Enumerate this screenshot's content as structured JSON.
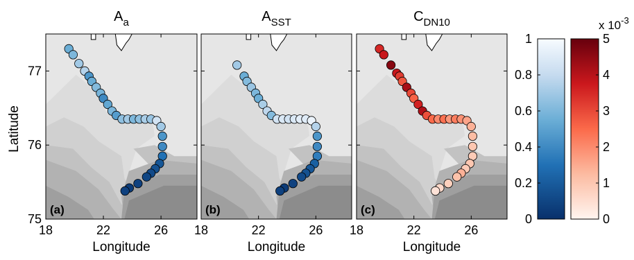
{
  "chart_data": {
    "type": "scatter",
    "xlabel": "Longitude",
    "ylabel": "Latitude",
    "xlim": [
      18,
      28.5
    ],
    "ylim": [
      75,
      77.5
    ],
    "xticks": [
      "18",
      "22",
      "26"
    ],
    "yticks": [
      "75",
      "76",
      "77"
    ],
    "panels": [
      {
        "id": "a",
        "title_main": "A",
        "title_sub": "a",
        "label": "(a)",
        "colormap": "blue",
        "points": [
          {
            "lon": 19.6,
            "lat": 77.3,
            "value": 0.55
          },
          {
            "lon": 19.9,
            "lat": 77.22,
            "value": 0.6
          },
          {
            "lon": 20.3,
            "lat": 77.1,
            "value": 0.7
          },
          {
            "lon": 20.7,
            "lat": 77.0,
            "value": 0.75
          },
          {
            "lon": 21.0,
            "lat": 76.93,
            "value": 0.45
          },
          {
            "lon": 21.2,
            "lat": 76.86,
            "value": 0.55
          },
          {
            "lon": 21.5,
            "lat": 76.78,
            "value": 0.62
          },
          {
            "lon": 21.8,
            "lat": 76.7,
            "value": 0.58
          },
          {
            "lon": 22.0,
            "lat": 76.63,
            "value": 0.4
          },
          {
            "lon": 22.3,
            "lat": 76.55,
            "value": 0.52
          },
          {
            "lon": 22.6,
            "lat": 76.46,
            "value": 0.6
          },
          {
            "lon": 22.9,
            "lat": 76.4,
            "value": 0.48
          },
          {
            "lon": 23.3,
            "lat": 76.35,
            "value": 0.65
          },
          {
            "lon": 23.7,
            "lat": 76.35,
            "value": 0.7
          },
          {
            "lon": 24.1,
            "lat": 76.35,
            "value": 0.6
          },
          {
            "lon": 24.5,
            "lat": 76.35,
            "value": 0.65
          },
          {
            "lon": 24.9,
            "lat": 76.35,
            "value": 0.72
          },
          {
            "lon": 25.3,
            "lat": 76.35,
            "value": 0.68
          },
          {
            "lon": 25.7,
            "lat": 76.33,
            "value": 0.85
          },
          {
            "lon": 26.0,
            "lat": 76.25,
            "value": 0.7
          },
          {
            "lon": 26.1,
            "lat": 76.12,
            "value": 0.45
          },
          {
            "lon": 26.1,
            "lat": 75.98,
            "value": 0.4
          },
          {
            "lon": 26.1,
            "lat": 75.85,
            "value": 0.3
          },
          {
            "lon": 25.9,
            "lat": 75.75,
            "value": 0.18
          },
          {
            "lon": 25.6,
            "lat": 75.68,
            "value": 0.15
          },
          {
            "lon": 25.3,
            "lat": 75.62,
            "value": 0.12
          },
          {
            "lon": 25.0,
            "lat": 75.57,
            "value": 0.1
          },
          {
            "lon": 24.4,
            "lat": 75.48,
            "value": 0.08
          },
          {
            "lon": 23.8,
            "lat": 75.42,
            "value": 0.05
          },
          {
            "lon": 23.5,
            "lat": 75.38,
            "value": 0.08
          }
        ]
      },
      {
        "id": "b",
        "title_main": "A",
        "title_sub": "SST",
        "label": "(b)",
        "colormap": "blue",
        "points": [
          {
            "lon": 20.5,
            "lat": 77.08,
            "value": 0.7
          },
          {
            "lon": 21.0,
            "lat": 76.93,
            "value": 0.55
          },
          {
            "lon": 21.2,
            "lat": 76.86,
            "value": 0.62
          },
          {
            "lon": 21.5,
            "lat": 76.78,
            "value": 0.68
          },
          {
            "lon": 21.8,
            "lat": 76.7,
            "value": 0.6
          },
          {
            "lon": 22.0,
            "lat": 76.63,
            "value": 0.55
          },
          {
            "lon": 22.3,
            "lat": 76.55,
            "value": 0.72
          },
          {
            "lon": 22.6,
            "lat": 76.46,
            "value": 0.78
          },
          {
            "lon": 22.9,
            "lat": 76.4,
            "value": 0.62
          },
          {
            "lon": 23.3,
            "lat": 76.35,
            "value": 0.85
          },
          {
            "lon": 23.7,
            "lat": 76.35,
            "value": 0.88
          },
          {
            "lon": 24.1,
            "lat": 76.35,
            "value": 0.85
          },
          {
            "lon": 24.5,
            "lat": 76.35,
            "value": 0.88
          },
          {
            "lon": 24.9,
            "lat": 76.35,
            "value": 0.92
          },
          {
            "lon": 25.3,
            "lat": 76.35,
            "value": 0.9
          },
          {
            "lon": 25.7,
            "lat": 76.33,
            "value": 0.95
          },
          {
            "lon": 26.0,
            "lat": 76.25,
            "value": 0.75
          },
          {
            "lon": 26.1,
            "lat": 76.12,
            "value": 0.45
          },
          {
            "lon": 26.1,
            "lat": 75.98,
            "value": 0.4
          },
          {
            "lon": 26.1,
            "lat": 75.85,
            "value": 0.35
          },
          {
            "lon": 25.9,
            "lat": 75.75,
            "value": 0.22
          },
          {
            "lon": 25.6,
            "lat": 75.68,
            "value": 0.18
          },
          {
            "lon": 25.3,
            "lat": 75.62,
            "value": 0.15
          },
          {
            "lon": 25.0,
            "lat": 75.57,
            "value": 0.12
          },
          {
            "lon": 24.4,
            "lat": 75.48,
            "value": 0.08
          },
          {
            "lon": 23.8,
            "lat": 75.42,
            "value": 0.05
          },
          {
            "lon": 23.5,
            "lat": 75.38,
            "value": 0.08
          }
        ]
      },
      {
        "id": "c",
        "title_main": "C",
        "title_sub": "DN10",
        "label": "(c)",
        "colormap": "red",
        "points": [
          {
            "lon": 19.6,
            "lat": 77.3,
            "value": 3.5
          },
          {
            "lon": 19.9,
            "lat": 77.22,
            "value": 3.8
          },
          {
            "lon": 20.4,
            "lat": 77.08,
            "value": 4.6
          },
          {
            "lon": 20.8,
            "lat": 76.97,
            "value": 3.8
          },
          {
            "lon": 21.0,
            "lat": 76.93,
            "value": 3.2
          },
          {
            "lon": 21.2,
            "lat": 76.86,
            "value": 2.8
          },
          {
            "lon": 21.5,
            "lat": 76.78,
            "value": 4.2
          },
          {
            "lon": 21.8,
            "lat": 76.7,
            "value": 3.0
          },
          {
            "lon": 22.0,
            "lat": 76.63,
            "value": 2.6
          },
          {
            "lon": 22.3,
            "lat": 76.55,
            "value": 3.6
          },
          {
            "lon": 22.6,
            "lat": 76.46,
            "value": 4.1
          },
          {
            "lon": 22.9,
            "lat": 76.4,
            "value": 2.9
          },
          {
            "lon": 23.3,
            "lat": 76.35,
            "value": 2.5
          },
          {
            "lon": 23.7,
            "lat": 76.35,
            "value": 2.0
          },
          {
            "lon": 24.1,
            "lat": 76.35,
            "value": 2.4
          },
          {
            "lon": 24.5,
            "lat": 76.35,
            "value": 1.8
          },
          {
            "lon": 24.9,
            "lat": 76.35,
            "value": 2.2
          },
          {
            "lon": 25.3,
            "lat": 76.35,
            "value": 1.9
          },
          {
            "lon": 25.7,
            "lat": 76.33,
            "value": 1.6
          },
          {
            "lon": 26.0,
            "lat": 76.25,
            "value": 1.4
          },
          {
            "lon": 26.1,
            "lat": 76.12,
            "value": 1.2
          },
          {
            "lon": 26.1,
            "lat": 75.98,
            "value": 1.0
          },
          {
            "lon": 26.1,
            "lat": 75.85,
            "value": 0.9
          },
          {
            "lon": 25.9,
            "lat": 75.75,
            "value": 1.0
          },
          {
            "lon": 25.6,
            "lat": 75.68,
            "value": 0.9
          },
          {
            "lon": 25.3,
            "lat": 75.62,
            "value": 1.4
          },
          {
            "lon": 25.0,
            "lat": 75.57,
            "value": 1.1
          },
          {
            "lon": 24.4,
            "lat": 75.48,
            "value": 0.8
          },
          {
            "lon": 23.8,
            "lat": 75.42,
            "value": 0.6
          },
          {
            "lon": 23.5,
            "lat": 75.38,
            "value": 0.4
          }
        ]
      }
    ],
    "colorbars": [
      {
        "id": "blue",
        "range": [
          0,
          1
        ],
        "ticks": [
          "0",
          "0.2",
          "0.4",
          "0.6",
          "0.8",
          "1"
        ],
        "low_color": "#08306b",
        "mid_color": "#6baed6",
        "high_color": "#f7fbff"
      },
      {
        "id": "red",
        "range": [
          0,
          5
        ],
        "ticks": [
          "0",
          "1",
          "2",
          "3",
          "4",
          "5"
        ],
        "exponent_base": "x 10",
        "exponent": "-3",
        "low_color": "#fff5f0",
        "mid_color": "#fb6a4a",
        "high_color": "#67000d"
      }
    ],
    "background_colors": [
      "#e6e6e6",
      "#dcdcdc",
      "#d0d0d0",
      "#c2c2c2",
      "#b2b2b2",
      "#9f9f9f",
      "#8c8c8c"
    ]
  }
}
